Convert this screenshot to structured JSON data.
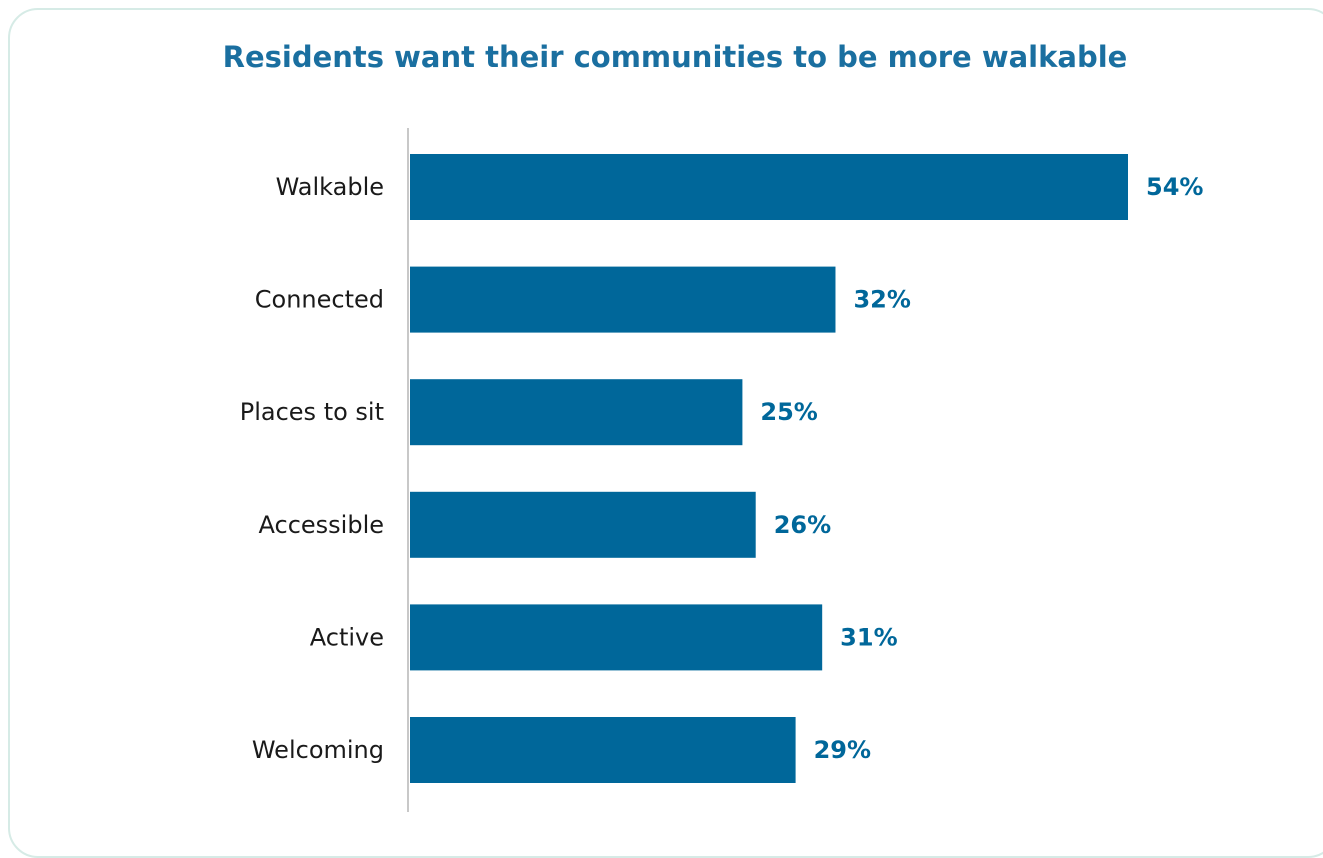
{
  "chart_data": {
    "type": "bar",
    "orientation": "horizontal",
    "title": "Residents want their communities to be more walkable",
    "categories": [
      "Walkable",
      "Connected",
      "Places to sit",
      "Accessible",
      "Active",
      "Welcoming"
    ],
    "values": [
      54,
      32,
      25,
      26,
      31,
      29
    ],
    "value_labels": [
      "54%",
      "32%",
      "25%",
      "26%",
      "31%",
      "29%"
    ],
    "value_suffix": "%",
    "xlim": [
      0,
      54
    ],
    "grid": false,
    "legend": "none",
    "colors": {
      "bar": "#00679a",
      "value_label": "#00679a",
      "title": "#1a6fa0",
      "axis": "#c8c8c8",
      "card_border": "#d6ebe6"
    }
  }
}
